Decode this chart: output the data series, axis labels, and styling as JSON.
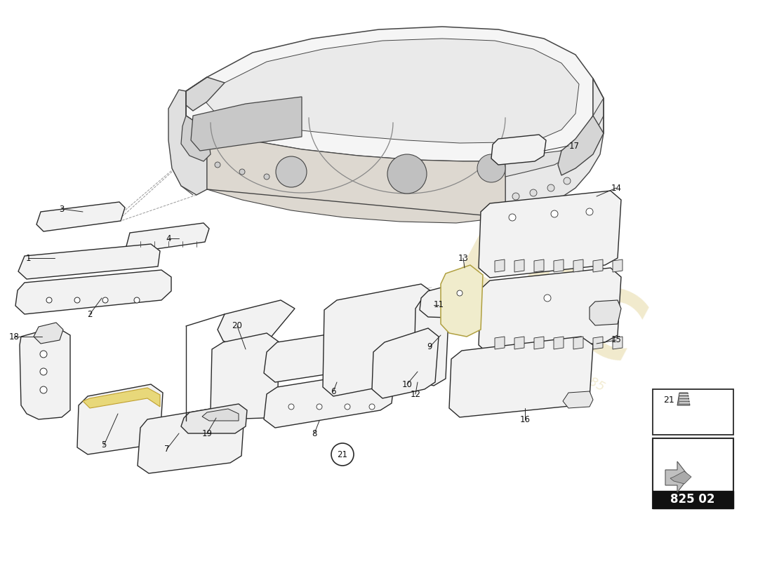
{
  "background_color": "#ffffff",
  "part_number": "825 02",
  "line_color": "#2a2a2a",
  "dashed_color": "#999999",
  "light_fill": "#f2f2f2",
  "accent_yellow": "#e8d87a",
  "car_line": "#444444",
  "watermark_color": "#e0d090",
  "watermark_alpha": 0.45
}
